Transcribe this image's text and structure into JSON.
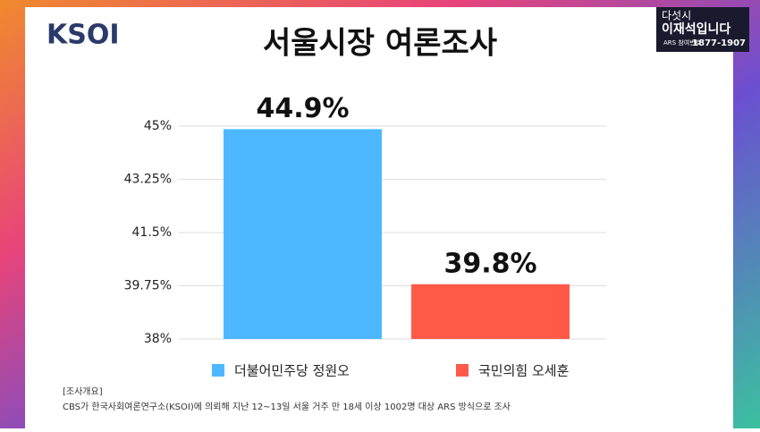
{
  "branding": {
    "logo": "KSOI",
    "show_line1": "다섯시",
    "show_line2": "이재석입니다",
    "phone_label": "ARS 참여번호",
    "phone": "1877-1907"
  },
  "chart_data": {
    "type": "bar",
    "title": "서울시장 여론조사",
    "series": [
      {
        "name": "더불어민주당 정원오",
        "color": "#4db8ff",
        "values": [
          44.9
        ],
        "value_labels": [
          "44.9%"
        ]
      },
      {
        "name": "국민의힘 오세훈",
        "color": "#ff5a47",
        "values": [
          39.8
        ],
        "value_labels": [
          "39.8%"
        ]
      }
    ],
    "ylim": [
      38,
      45
    ],
    "yticks": [
      {
        "value": 38,
        "label": "38%"
      },
      {
        "value": 39.75,
        "label": "39.75%"
      },
      {
        "value": 41.5,
        "label": "41.5%"
      },
      {
        "value": 43.25,
        "label": "43.25%"
      },
      {
        "value": 45,
        "label": "45%"
      }
    ],
    "grid": true,
    "legend": "bottom",
    "notes": [
      "[조사개요]",
      "CBS가 한국사회여론연구소(KSOI)에 의뢰해 지난 12~13일 서울 거주 만 18세 이상 1002명 대상 ARS 방식으로 조사"
    ]
  }
}
